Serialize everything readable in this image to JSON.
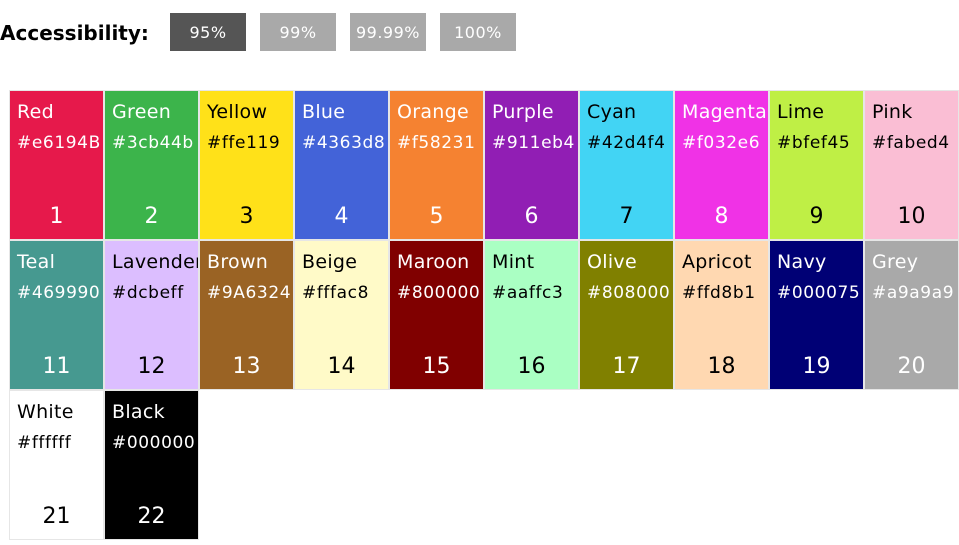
{
  "accessibility": {
    "label": "Accessibility:",
    "options": [
      {
        "label": "95%",
        "active": true
      },
      {
        "label": "99%",
        "active": false
      },
      {
        "label": "99.99%",
        "active": false
      },
      {
        "label": "100%",
        "active": false
      }
    ]
  },
  "colors": [
    {
      "name": "Red",
      "hex": "#e6194B",
      "bg": "#e6194B",
      "fg": "#ffffff",
      "number": "1"
    },
    {
      "name": "Green",
      "hex": "#3cb44b",
      "bg": "#3cb44b",
      "fg": "#ffffff",
      "number": "2"
    },
    {
      "name": "Yellow",
      "hex": "#ffe119",
      "bg": "#ffe119",
      "fg": "#000000",
      "number": "3"
    },
    {
      "name": "Blue",
      "hex": "#4363d8",
      "bg": "#4363d8",
      "fg": "#ffffff",
      "number": "4"
    },
    {
      "name": "Orange",
      "hex": "#f58231",
      "bg": "#f58231",
      "fg": "#ffffff",
      "number": "5"
    },
    {
      "name": "Purple",
      "hex": "#911eb4",
      "bg": "#911eb4",
      "fg": "#ffffff",
      "number": "6"
    },
    {
      "name": "Cyan",
      "hex": "#42d4f4",
      "bg": "#42d4f4",
      "fg": "#000000",
      "number": "7"
    },
    {
      "name": "Magenta",
      "hex": "#f032e6",
      "bg": "#f032e6",
      "fg": "#ffffff",
      "number": "8"
    },
    {
      "name": "Lime",
      "hex": "#bfef45",
      "bg": "#bfef45",
      "fg": "#000000",
      "number": "9"
    },
    {
      "name": "Pink",
      "hex": "#fabed4",
      "bg": "#fabed4",
      "fg": "#000000",
      "number": "10"
    },
    {
      "name": "Teal",
      "hex": "#469990",
      "bg": "#469990",
      "fg": "#ffffff",
      "number": "11"
    },
    {
      "name": "Lavender",
      "hex": "#dcbeff",
      "bg": "#dcbeff",
      "fg": "#000000",
      "number": "12"
    },
    {
      "name": "Brown",
      "hex": "#9A6324",
      "bg": "#9A6324",
      "fg": "#ffffff",
      "number": "13"
    },
    {
      "name": "Beige",
      "hex": "#fffac8",
      "bg": "#fffac8",
      "fg": "#000000",
      "number": "14"
    },
    {
      "name": "Maroon",
      "hex": "#800000",
      "bg": "#800000",
      "fg": "#ffffff",
      "number": "15"
    },
    {
      "name": "Mint",
      "hex": "#aaffc3",
      "bg": "#aaffc3",
      "fg": "#000000",
      "number": "16"
    },
    {
      "name": "Olive",
      "hex": "#808000",
      "bg": "#808000",
      "fg": "#ffffff",
      "number": "17"
    },
    {
      "name": "Apricot",
      "hex": "#ffd8b1",
      "bg": "#ffd8b1",
      "fg": "#000000",
      "number": "18"
    },
    {
      "name": "Navy",
      "hex": "#000075",
      "bg": "#000075",
      "fg": "#ffffff",
      "number": "19"
    },
    {
      "name": "Grey",
      "hex": "#a9a9a9",
      "bg": "#a9a9a9",
      "fg": "#ffffff",
      "number": "20"
    },
    {
      "name": "White",
      "hex": "#ffffff",
      "bg": "#ffffff",
      "fg": "#000000",
      "number": "21"
    },
    {
      "name": "Black",
      "hex": "#000000",
      "bg": "#000000",
      "fg": "#ffffff",
      "number": "22"
    }
  ]
}
